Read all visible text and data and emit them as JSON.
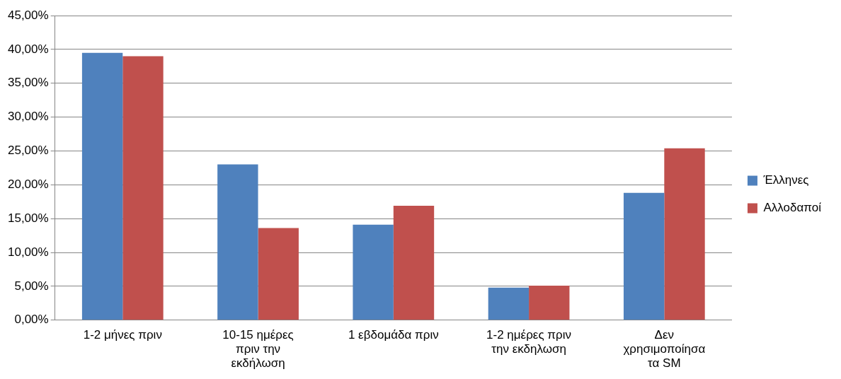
{
  "chart_data": {
    "type": "bar",
    "categories": [
      "1-2 μήνες πριν",
      "10-15 ημέρες πριν την εκδήλωση",
      "1 εβδομάδα πριν",
      "1-2 ημέρες πριν την εκδηλωση",
      "Δεν χρησιμοποίησα τα SM"
    ],
    "series": [
      {
        "name": "Έλληνες",
        "color": "#4f81bd",
        "values": [
          39.5,
          23.0,
          14.1,
          4.8,
          18.8
        ]
      },
      {
        "name": "Αλλοδαποί",
        "color": "#c0504d",
        "values": [
          39.0,
          13.6,
          16.9,
          5.1,
          25.4
        ]
      }
    ],
    "ylim": [
      0,
      45
    ],
    "yticks": [
      {
        "value": 0,
        "label": "0,00%"
      },
      {
        "value": 5,
        "label": "5,00%"
      },
      {
        "value": 10,
        "label": "10,00%"
      },
      {
        "value": 15,
        "label": "15,00%"
      },
      {
        "value": 20,
        "label": "20,00%"
      },
      {
        "value": 25,
        "label": "25,00%"
      },
      {
        "value": 30,
        "label": "30,00%"
      },
      {
        "value": 35,
        "label": "35,00%"
      },
      {
        "value": 40,
        "label": "40,00%"
      },
      {
        "value": 45,
        "label": "45,00%"
      }
    ],
    "grid": "y",
    "legend": "right"
  }
}
